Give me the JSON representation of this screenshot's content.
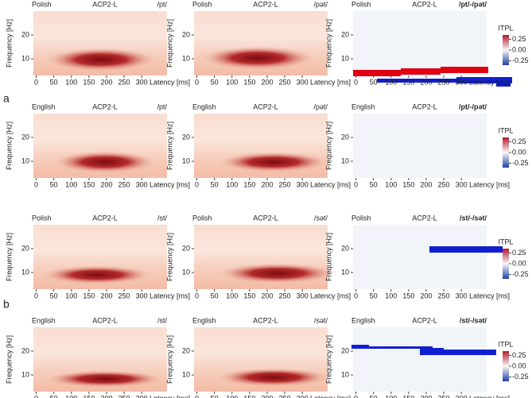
{
  "labels": [
    "a",
    "b"
  ],
  "chart_data": [
    {
      "type": "heatmap",
      "group": "Polish",
      "title": "ACP2-L",
      "condition": "/pt/",
      "ylabel": "Frequency [Hz]",
      "xlabel": "Latency [ms]",
      "xlim": [
        -8,
        372
      ],
      "ylim": [
        3,
        30
      ],
      "xticks": [
        0,
        50,
        100,
        150,
        200,
        250,
        300
      ],
      "yticks": [
        10,
        20
      ]
    },
    {
      "type": "heatmap",
      "group": "Polish",
      "title": "ACP2-L",
      "condition": "/pət/",
      "ylabel": "Frequency [Hz]",
      "xlabel": "Latency [ms]",
      "xlim": [
        -8,
        372
      ],
      "ylim": [
        3,
        30
      ],
      "xticks": [
        0,
        50,
        100,
        150,
        200,
        250,
        300
      ],
      "yticks": [
        10,
        20
      ]
    },
    {
      "type": "heatmap",
      "group": "Polish",
      "title": "ACP2-L",
      "condition": "/pt/-/pət/",
      "ylabel": "Frequency [Hz]",
      "xlabel": "Latency [ms]",
      "xlim": [
        -8,
        372
      ],
      "ylim": [
        3,
        30
      ],
      "xticks": [
        0,
        50,
        100,
        150,
        200,
        250,
        300
      ],
      "yticks": [
        10,
        20
      ],
      "colorbar_label": "ITPL",
      "clim": [
        -0.35,
        0.35
      ],
      "cticks": [
        0.25,
        {
          "value": 0,
          "label": "0.00"
        },
        -0.25
      ]
    },
    {
      "type": "heatmap",
      "group": "English",
      "title": "ACP2-L",
      "condition": "/pt/",
      "ylabel": "Frequency [Hz]",
      "xlabel": "Latency [ms]",
      "xlim": [
        -8,
        372
      ],
      "ylim": [
        3,
        30
      ],
      "xticks": [
        0,
        50,
        100,
        150,
        200,
        250,
        300
      ],
      "yticks": [
        10,
        20
      ]
    },
    {
      "type": "heatmap",
      "group": "English",
      "title": "ACP2-L",
      "condition": "/pət/",
      "ylabel": "Frequency [Hz]",
      "xlabel": "Latency [ms]",
      "xlim": [
        -8,
        372
      ],
      "ylim": [
        3,
        30
      ],
      "xticks": [
        0,
        50,
        100,
        150,
        200,
        250,
        300
      ],
      "yticks": [
        10,
        20
      ]
    },
    {
      "type": "heatmap",
      "group": "English",
      "title": "ACP2-L",
      "condition": "/pt/-/pət/",
      "ylabel": "Frequency [Hz]",
      "xlabel": "Latency [ms]",
      "xlim": [
        -8,
        372
      ],
      "ylim": [
        3,
        30
      ],
      "xticks": [
        0,
        50,
        100,
        150,
        200,
        250,
        300
      ],
      "yticks": [
        10,
        20
      ],
      "colorbar_label": "ITPL",
      "clim": [
        -0.35,
        0.35
      ],
      "cticks": [
        0.25,
        {
          "value": 0,
          "label": "0.00"
        },
        -0.25
      ]
    },
    {
      "type": "heatmap",
      "group": "Polish",
      "title": "ACP2-L",
      "condition": "/st/",
      "ylabel": "Frequency [Hz]",
      "xlabel": "Latency [ms]",
      "xlim": [
        -8,
        372
      ],
      "ylim": [
        3,
        30
      ],
      "xticks": [
        0,
        50,
        100,
        150,
        200,
        250,
        300
      ],
      "yticks": [
        10,
        20
      ]
    },
    {
      "type": "heatmap",
      "group": "Polish",
      "title": "ACP2-L",
      "condition": "/sət/",
      "ylabel": "Frequency [Hz]",
      "xlabel": "Latency [ms]",
      "xlim": [
        -8,
        372
      ],
      "ylim": [
        3,
        30
      ],
      "xticks": [
        0,
        50,
        100,
        150,
        200,
        250,
        300
      ],
      "yticks": [
        10,
        20
      ]
    },
    {
      "type": "heatmap",
      "group": "Polish",
      "title": "ACP2-L",
      "condition": "/st/-/sət/",
      "ylabel": "Frequency [Hz]",
      "xlabel": "Latency [ms]",
      "xlim": [
        -8,
        372
      ],
      "ylim": [
        3,
        30
      ],
      "xticks": [
        0,
        50,
        100,
        150,
        200,
        250,
        300
      ],
      "yticks": [
        10,
        20
      ],
      "colorbar_label": "ITPL",
      "clim": [
        -0.35,
        0.35
      ],
      "cticks": [
        0.25,
        {
          "value": 0,
          "label": "0.00"
        },
        -0.25
      ]
    },
    {
      "type": "heatmap",
      "group": "English",
      "title": "ACP2-L",
      "condition": "/st/",
      "ylabel": "Frequency [Hz]",
      "xlabel": "Latency [ms]",
      "xlim": [
        -8,
        372
      ],
      "ylim": [
        3,
        30
      ],
      "xticks": [
        0,
        50,
        100,
        150,
        200,
        250,
        300
      ],
      "yticks": [
        10,
        20
      ]
    },
    {
      "type": "heatmap",
      "group": "English",
      "title": "ACP2-L",
      "condition": "/sət/",
      "ylabel": "Frequency [Hz]",
      "xlabel": "Latency [ms]",
      "xlim": [
        -8,
        372
      ],
      "ylim": [
        3,
        30
      ],
      "xticks": [
        0,
        50,
        100,
        150,
        200,
        250,
        300
      ],
      "yticks": [
        10,
        20
      ]
    },
    {
      "type": "heatmap",
      "group": "English",
      "title": "ACP2-L",
      "condition": "/st/-/sət/",
      "ylabel": "Frequency [Hz]",
      "xlabel": "Latency [ms]",
      "xlim": [
        -8,
        372
      ],
      "ylim": [
        3,
        30
      ],
      "xticks": [
        0,
        50,
        100,
        150,
        200,
        250,
        300
      ],
      "yticks": [
        10,
        20
      ],
      "colorbar_label": "ITPL",
      "clim": [
        -0.35,
        0.35
      ],
      "cticks": [
        0.25,
        {
          "value": 0,
          "label": "0.00"
        },
        -0.25
      ]
    }
  ]
}
